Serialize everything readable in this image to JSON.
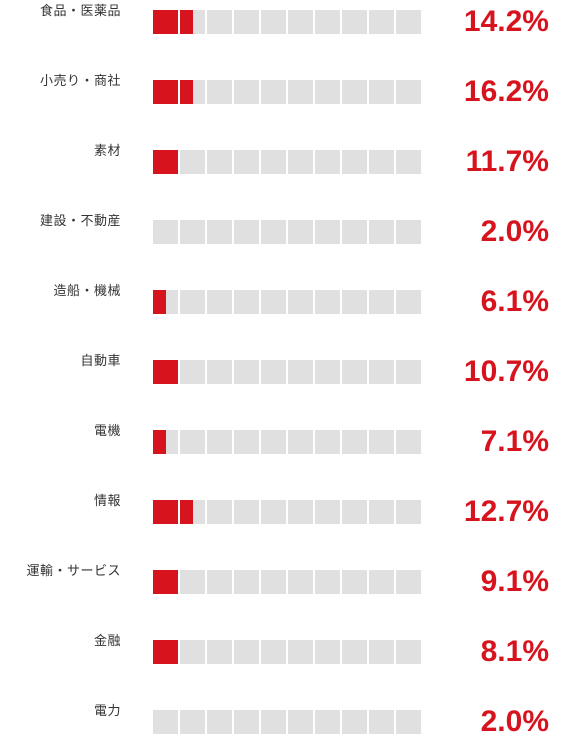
{
  "chart_data": {
    "type": "bar",
    "categories": [
      "食品・医薬品",
      "小売り・商社",
      "素材",
      "建設・不動産",
      "造船・機械",
      "自動車",
      "電機",
      "情報",
      "運輸・サービス",
      "金融",
      "電力"
    ],
    "value_labels": [
      "14.2%",
      "16.2%",
      "11.7%",
      "2.0%",
      "6.1%",
      "10.7%",
      "7.1%",
      "12.7%",
      "9.1%",
      "8.1%",
      "2.0%"
    ],
    "filled_cells": [
      1.5,
      1.5,
      1,
      0,
      0.5,
      1,
      0.5,
      1.5,
      1,
      1,
      0
    ],
    "total_cells": 10,
    "colors": {
      "accent": "#d7141e",
      "empty_cell": "#e0e0e0",
      "label_text": "#333333"
    }
  }
}
